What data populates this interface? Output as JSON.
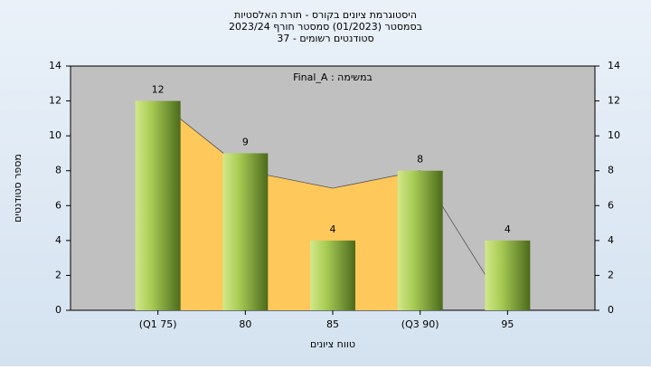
{
  "chart_data": {
    "type": "bar",
    "title": "היסטוגרמת ציונים בקורס - תורת האלסטיות",
    "subtitle": [
      "בסמסטר (01/2023) סמסטר חורף 2023/24",
      "סטודנטים רשומים - 37"
    ],
    "annotation": "במשימה : Final_A",
    "ylabel": "מספר סטודנטים",
    "xlabel": "טווח ציונים",
    "categories": [
      "(Q1 75)",
      "80",
      "85",
      "(Q3 90)",
      "95"
    ],
    "values": [
      12,
      9,
      4,
      8,
      4
    ],
    "color": "#8db33a",
    "series": [
      {
        "color": "#ffc85a",
        "values": [
          12,
          8,
          7,
          8,
          0
        ]
      }
    ],
    "ylim": [
      0,
      14
    ],
    "yticks": [
      0,
      2,
      4,
      6,
      8,
      10,
      12,
      14
    ],
    "y2lim": [
      0,
      14
    ],
    "y2ticks": [
      0,
      2,
      4,
      6,
      8,
      10,
      12,
      14
    ]
  }
}
